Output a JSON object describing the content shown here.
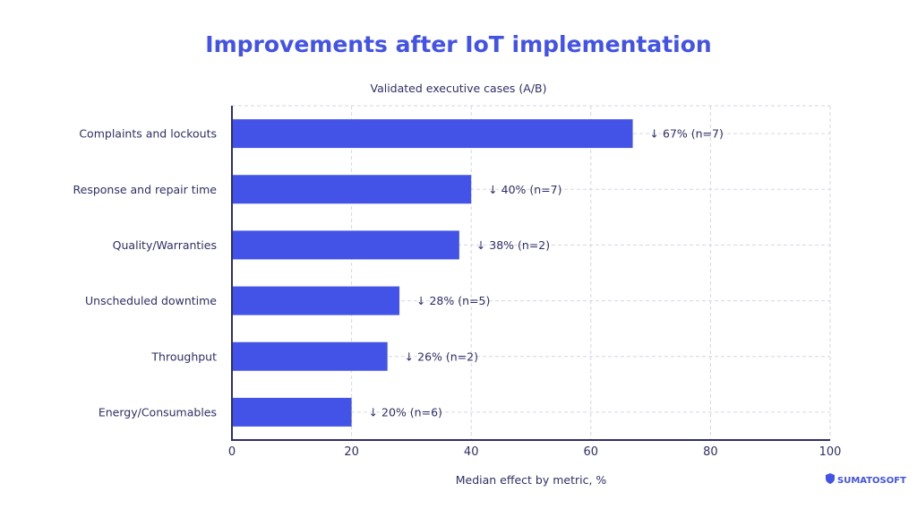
{
  "chart_data": {
    "type": "bar",
    "orientation": "horizontal",
    "title": "Improvements after IoT implementation",
    "subtitle": "Validated executive cases (A/B)",
    "xlabel": "Median effect by metric, %",
    "ylabel": "",
    "xlim": [
      0,
      100
    ],
    "xticks": [
      0,
      20,
      40,
      60,
      80,
      100
    ],
    "grid": true,
    "categories": [
      "Complaints and lockouts",
      "Response and repair time",
      "Quality/Warranties",
      "Unscheduled downtime",
      "Throughput",
      "Energy/Consumables"
    ],
    "values": [
      67,
      40,
      38,
      28,
      26,
      20
    ],
    "data_labels": [
      "↓ 67% (n=7)",
      "↓ 40% (n=7)",
      "↓ 38% (n=2)",
      "↓ 28% (n=5)",
      "↓ 26% (n=2)",
      "↓ 20% (n=6)"
    ],
    "colors": {
      "bar": "#4353e8",
      "axis": "#2e2f6b",
      "grid": "#d3d6e6",
      "title": "#4353e8"
    }
  },
  "logo": {
    "text": "SUMATOSOFT"
  }
}
